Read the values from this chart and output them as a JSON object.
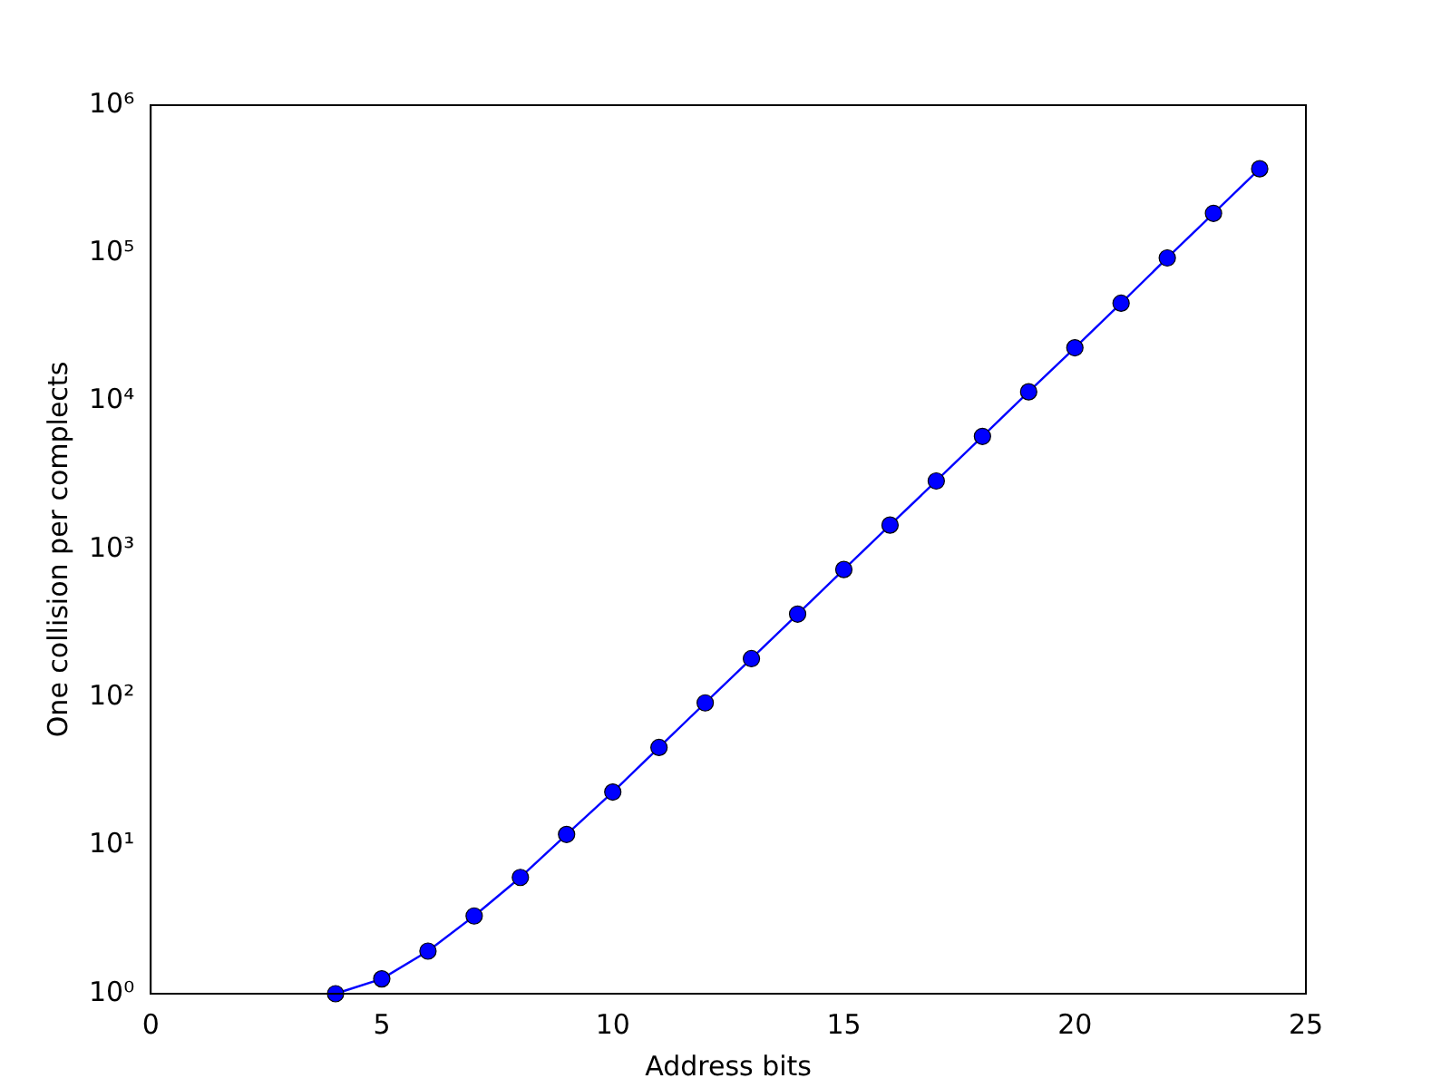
{
  "chart_data": {
    "type": "line",
    "xlabel": "Address bits",
    "ylabel": "One collision per complects",
    "x": [
      4,
      5,
      6,
      7,
      8,
      9,
      10,
      11,
      12,
      13,
      14,
      15,
      16,
      17,
      18,
      19,
      20,
      21,
      22,
      23,
      24
    ],
    "series": [
      {
        "color": "#0000ff",
        "values": [
          1.0,
          1.26,
          1.94,
          3.35,
          6.1,
          11.9,
          23,
          46,
          92,
          183,
          366,
          732,
          1460,
          2900,
          5800,
          11600,
          23000,
          46000,
          93000,
          186000,
          372000
        ]
      }
    ],
    "xlim": [
      0,
      25
    ],
    "xticks": [
      0,
      5,
      10,
      15,
      20,
      25
    ],
    "ylim": [
      1,
      1000000
    ],
    "log": "y",
    "yticks": [
      {
        "value": 1,
        "label": "10⁰"
      },
      {
        "value": 10,
        "label": "10¹"
      },
      {
        "value": 100,
        "label": "10²"
      },
      {
        "value": 1000,
        "label": "10³"
      },
      {
        "value": 10000,
        "label": "10⁴"
      },
      {
        "value": 100000,
        "label": "10⁵"
      },
      {
        "value": 1000000,
        "label": "10⁶"
      }
    ],
    "marker": "circle",
    "line_style": "solid"
  }
}
